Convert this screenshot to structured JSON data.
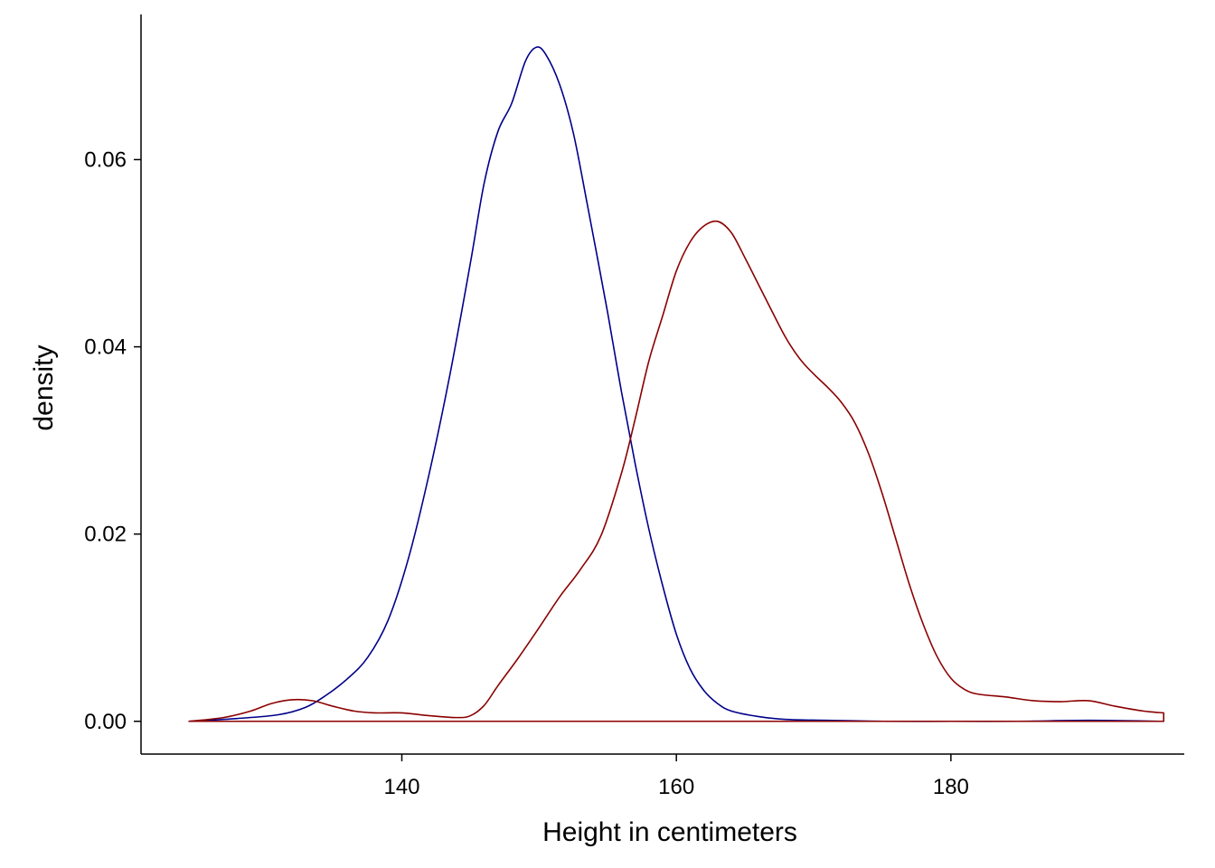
{
  "chart_data": {
    "type": "line",
    "subtype": "density",
    "title": "",
    "xlabel": "Height in centimeters",
    "ylabel": "density",
    "xlim": [
      121,
      197
    ],
    "ylim": [
      -0.0035,
      0.0755
    ],
    "x_ticks": [
      140,
      160,
      180
    ],
    "x_tick_labels": [
      "140",
      "160",
      "180"
    ],
    "y_ticks": [
      0,
      0.02,
      0.04,
      0.06
    ],
    "y_tick_labels": [
      "0.00",
      "0.02",
      "0.04",
      "0.06"
    ],
    "grid": false,
    "legend": "none",
    "series": [
      {
        "color": "#00008B",
        "x": [
          124.5,
          128,
          131,
          133,
          134.5,
          136,
          137.5,
          139,
          140.5,
          142,
          143.5,
          145,
          146,
          147,
          148,
          149,
          149.8,
          150.5,
          151.5,
          152.5,
          153.5,
          155,
          156,
          157,
          158,
          159,
          160,
          161,
          162,
          163,
          164,
          166,
          168,
          171,
          175,
          180,
          185,
          190,
          195.5
        ],
        "values": [
          0.0,
          0.0003,
          0.0007,
          0.0015,
          0.0028,
          0.0045,
          0.0068,
          0.0108,
          0.0175,
          0.0265,
          0.037,
          0.049,
          0.0575,
          0.063,
          0.066,
          0.0705,
          0.072,
          0.0712,
          0.068,
          0.0628,
          0.0553,
          0.0436,
          0.0352,
          0.0275,
          0.0205,
          0.0145,
          0.0093,
          0.0056,
          0.0033,
          0.0019,
          0.0011,
          0.0005,
          0.0002,
          0.0001,
          0.0,
          0.0,
          0.0,
          0.0001,
          0.0
        ]
      },
      {
        "color": "#8B0000",
        "x": [
          124.5,
          127,
          129,
          130.5,
          132,
          133.5,
          135,
          136.5,
          138,
          140,
          142,
          144,
          145,
          146,
          147,
          148.5,
          150,
          151.5,
          153,
          154.5,
          156,
          157,
          158,
          159,
          160,
          161,
          162,
          163,
          164,
          165,
          166,
          167,
          168,
          169,
          170,
          171,
          172,
          173,
          174,
          175,
          176,
          177,
          178,
          179,
          180,
          181,
          182,
          184,
          186,
          188,
          190,
          192,
          194,
          195.5
        ],
        "values": [
          0.0,
          0.0004,
          0.0011,
          0.0019,
          0.0023,
          0.0022,
          0.0016,
          0.0011,
          0.0009,
          0.0009,
          0.0006,
          0.0004,
          0.0006,
          0.0017,
          0.0038,
          0.0068,
          0.01,
          0.0133,
          0.0162,
          0.0198,
          0.0265,
          0.0323,
          0.0385,
          0.0433,
          0.0481,
          0.0512,
          0.0529,
          0.0534,
          0.0522,
          0.0495,
          0.0466,
          0.0437,
          0.0409,
          0.0387,
          0.0371,
          0.0357,
          0.0341,
          0.0319,
          0.0286,
          0.0243,
          0.0194,
          0.0145,
          0.0103,
          0.0069,
          0.0046,
          0.0034,
          0.0029,
          0.0026,
          0.0022,
          0.0021,
          0.0022,
          0.0016,
          0.0011,
          0.0009
        ]
      }
    ]
  }
}
